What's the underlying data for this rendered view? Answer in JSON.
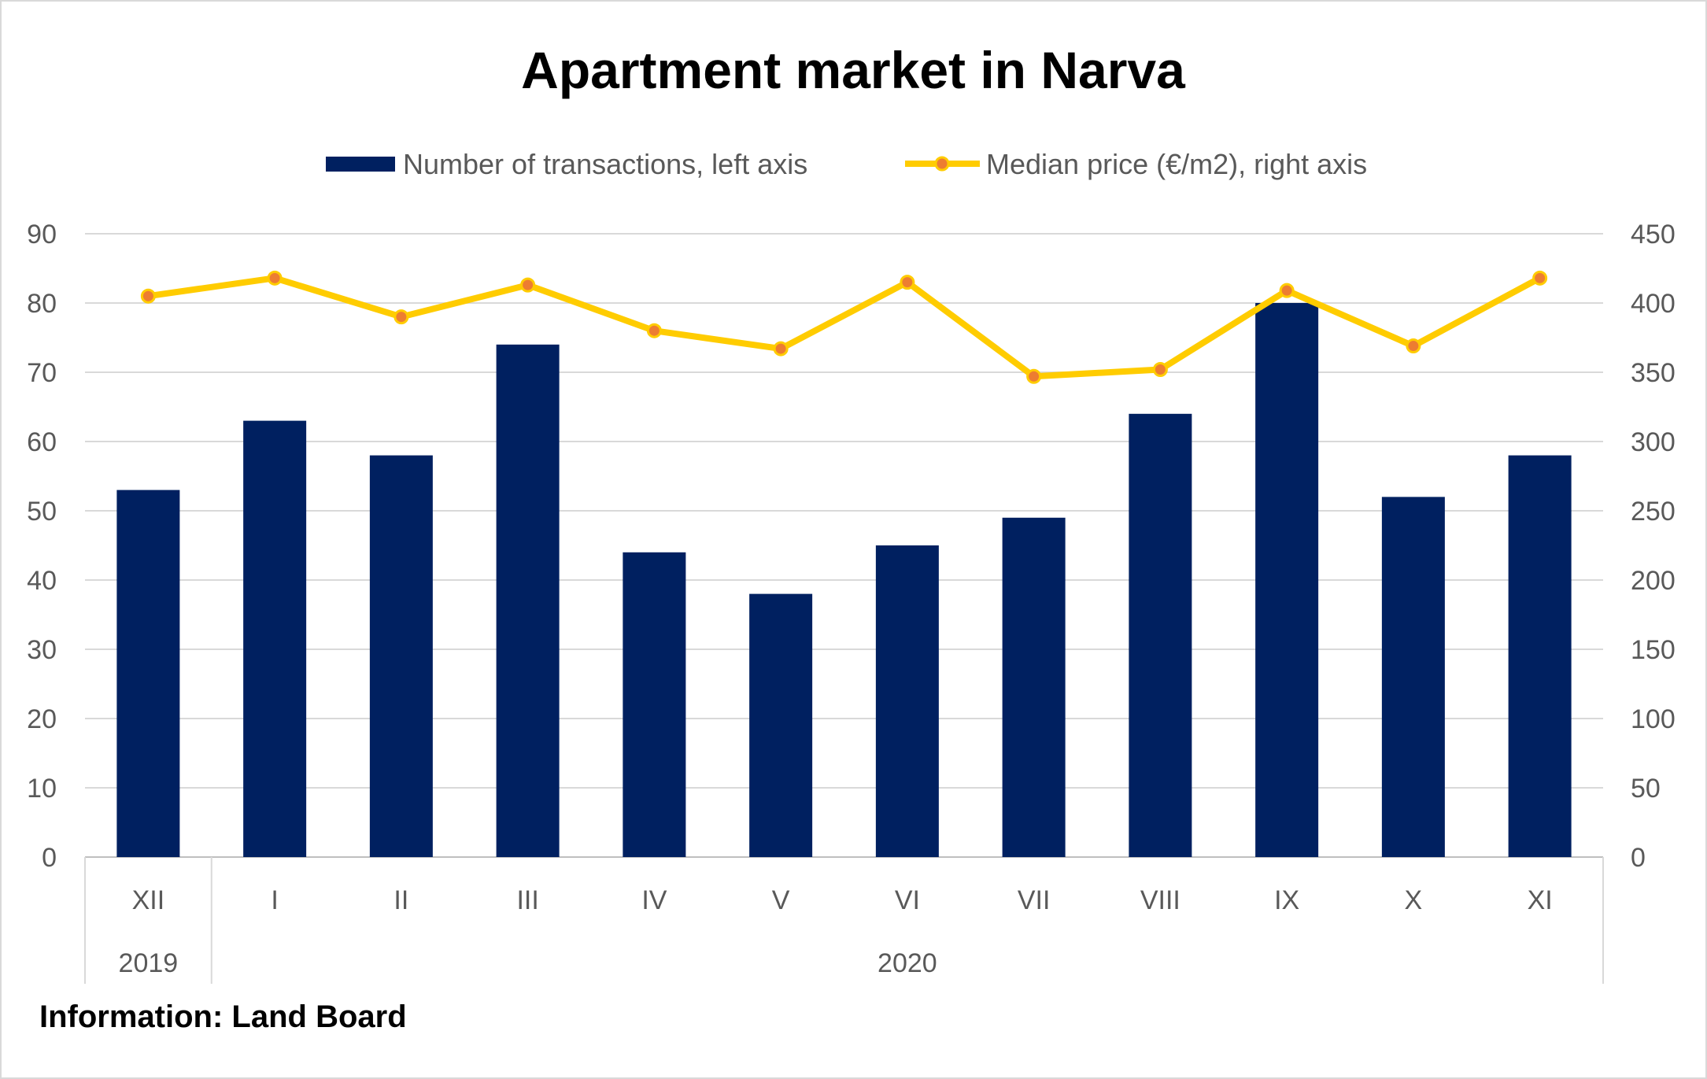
{
  "chart_data": {
    "type": "bar",
    "title": "Apartment market in Narva",
    "categories": [
      "XII",
      "I",
      "II",
      "III",
      "IV",
      "V",
      "VI",
      "VII",
      "VIII",
      "IX",
      "X",
      "XI"
    ],
    "year_groups": [
      {
        "label": "2019",
        "count": 1
      },
      {
        "label": "2020",
        "count": 11
      }
    ],
    "series": [
      {
        "name": "Number of transactions, left axis",
        "type": "bar",
        "axis": "left",
        "color": "#002060",
        "values": [
          53,
          63,
          58,
          74,
          44,
          38,
          45,
          49,
          64,
          80,
          52,
          58
        ]
      },
      {
        "name": "Median price (€/m2), right axis",
        "type": "line",
        "axis": "right",
        "color": "#FFCC00",
        "marker_color": "#ED7D31",
        "values": [
          405,
          418,
          390,
          413,
          380,
          367,
          415,
          347,
          352,
          409,
          369,
          418
        ]
      }
    ],
    "y_left": {
      "min": 0,
      "max": 90,
      "step": 10
    },
    "y_right": {
      "min": 0,
      "max": 450,
      "step": 50
    },
    "grid": true,
    "legend_position": "top"
  },
  "source": "Information: Land Board"
}
